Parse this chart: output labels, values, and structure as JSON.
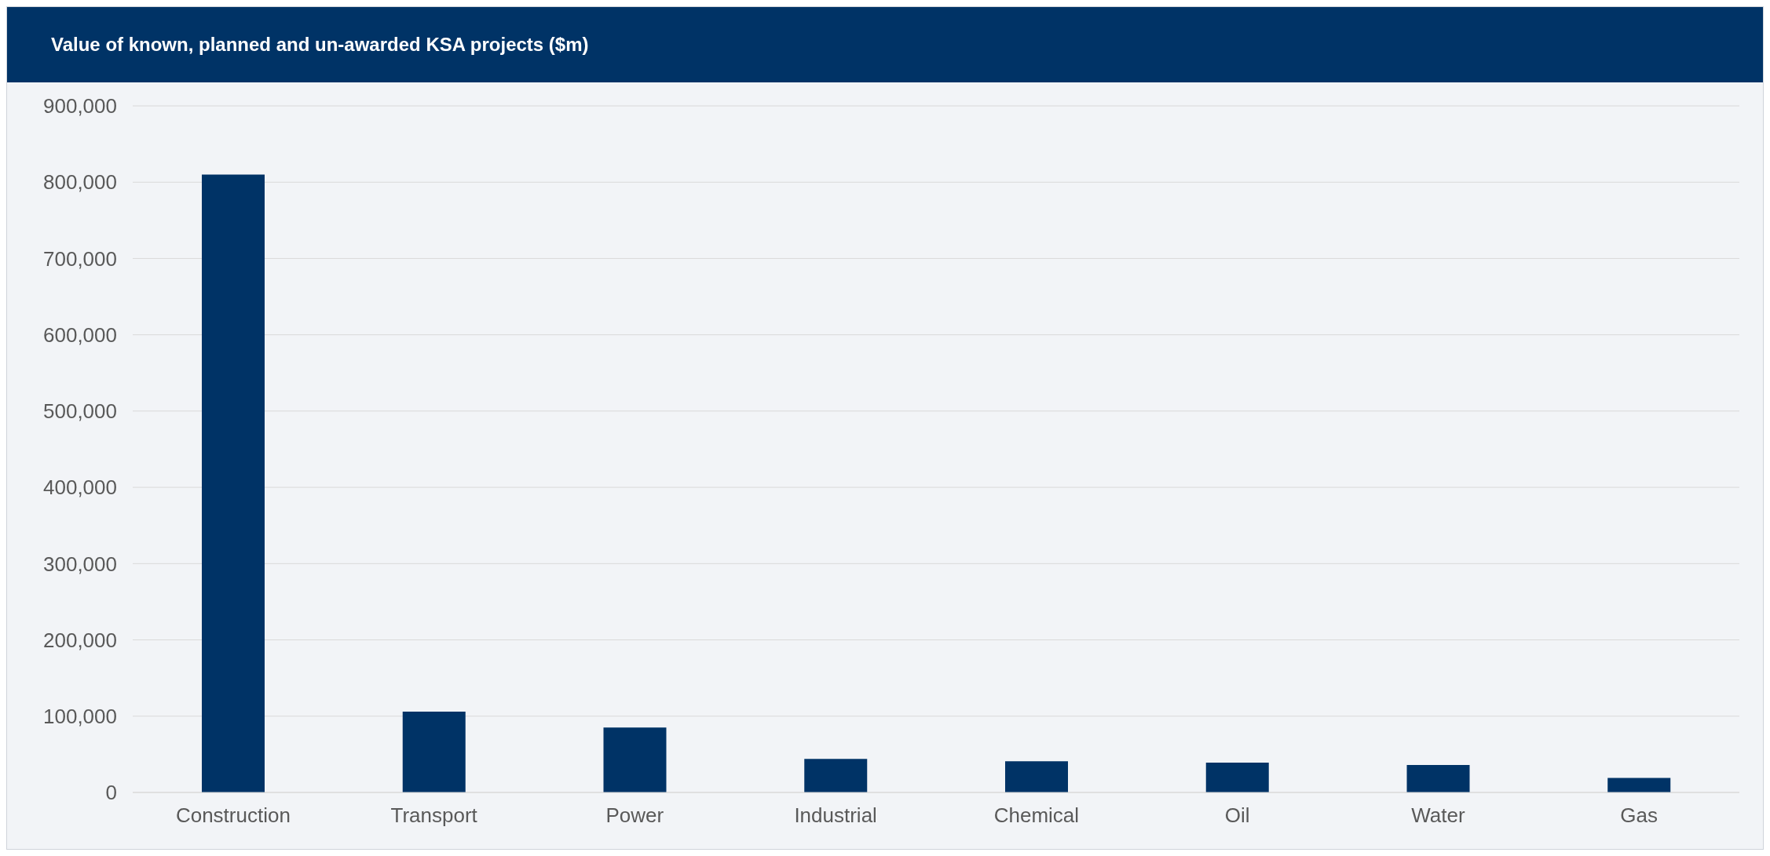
{
  "chart_data": {
    "type": "bar",
    "title": "Value of known, planned and un-awarded KSA projects ($m)",
    "categories": [
      "Construction",
      "Transport",
      "Power",
      "Industrial",
      "Chemical",
      "Oil",
      "Water",
      "Gas"
    ],
    "values": [
      810000,
      106000,
      85000,
      44000,
      41000,
      39000,
      36000,
      19000
    ],
    "color": "#003366",
    "ylim": [
      0,
      900000
    ],
    "yticks": [
      0,
      {
        "value": 100000,
        "label": "100,000"
      },
      {
        "value": 200000,
        "label": "200,000"
      },
      {
        "value": 300000,
        "label": "300,000"
      },
      {
        "value": 400000,
        "label": "400,000"
      },
      {
        "value": 500000,
        "label": "500,000"
      },
      {
        "value": 600000,
        "label": "600,000"
      },
      {
        "value": 700000,
        "label": "700,000"
      },
      {
        "value": 800000,
        "label": "800,000"
      },
      {
        "value": 900000,
        "label": "900,000"
      }
    ],
    "grid": "y"
  }
}
